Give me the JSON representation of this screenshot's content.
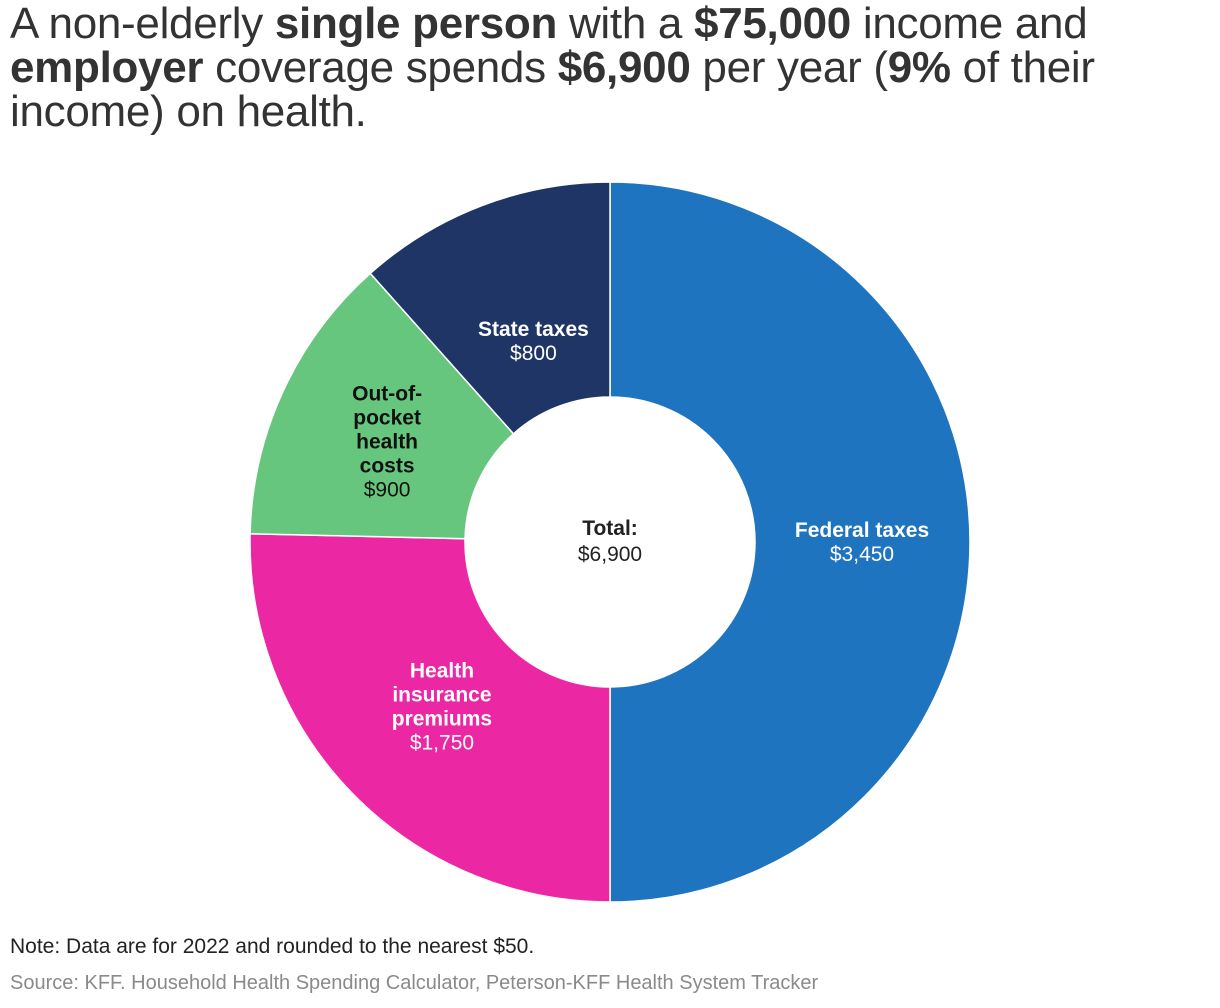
{
  "title_parts": [
    {
      "text": "A non-elderly ",
      "bold": false
    },
    {
      "text": "single person",
      "bold": true
    },
    {
      "text": " with a ",
      "bold": false
    },
    {
      "text": "$75,000",
      "bold": true
    },
    {
      "text": " income and ",
      "bold": false
    },
    {
      "text": "employer",
      "bold": true
    },
    {
      "text": " coverage spends ",
      "bold": false
    },
    {
      "text": "$6,900",
      "bold": true
    },
    {
      "text": " per year (",
      "bold": false
    },
    {
      "text": "9%",
      "bold": true
    },
    {
      "text": " of their income) on health.",
      "bold": false
    }
  ],
  "center_label": {
    "title": "Total:",
    "value": "$6,900"
  },
  "chart_data": {
    "type": "pie",
    "variant": "donut",
    "total": 6900,
    "slices": [
      {
        "name": "Federal taxes",
        "label_lines": [
          "Federal taxes"
        ],
        "value": 3450,
        "value_label": "$3,450",
        "color": "#1f74bf",
        "label_color": "#ffffff"
      },
      {
        "name": "Health insurance premiums",
        "label_lines": [
          "Health",
          "insurance",
          "premiums"
        ],
        "value": 1750,
        "value_label": "$1,750",
        "color": "#ec27a3",
        "label_color": "#ffffff"
      },
      {
        "name": "Out-of-pocket health costs",
        "label_lines": [
          "Out-of-",
          "pocket",
          "health",
          "costs"
        ],
        "value": 900,
        "value_label": "$900",
        "color": "#66c67d",
        "label_color": "#111111"
      },
      {
        "name": "State taxes",
        "label_lines": [
          "State taxes"
        ],
        "value": 800,
        "value_label": "$800",
        "color": "#1f3566",
        "label_color": "#ffffff"
      }
    ]
  },
  "note": "Note: Data are for 2022 and rounded to the nearest $50.",
  "source": "Source: KFF. Household Health Spending Calculator, Peterson-KFF Health System Tracker"
}
